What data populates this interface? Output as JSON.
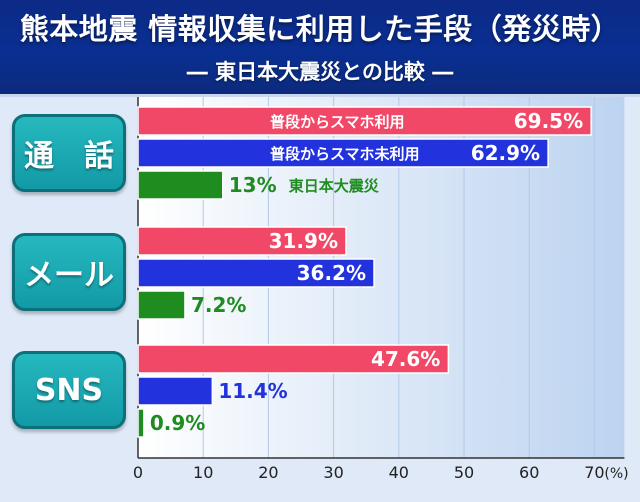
{
  "header": {
    "title": "熊本地震 情報収集に利用した手段（発災時）",
    "subtitle": "― 東日本大震災との比較 ―"
  },
  "colors": {
    "smartphone_users": "#f14867",
    "non_smartphone_users": "#2232dc",
    "great_east_japan": "#1f8c1f",
    "category_box": "#1aa6b0"
  },
  "chart_data": {
    "type": "bar",
    "orientation": "horizontal",
    "categories": [
      "通　話",
      "メール",
      "SNS"
    ],
    "series": [
      {
        "name": "普段からスマホ利用",
        "values": [
          69.5,
          31.9,
          47.6
        ]
      },
      {
        "name": "普段からスマホ未利用",
        "values": [
          62.9,
          36.2,
          11.4
        ]
      },
      {
        "name": "東日本大震災",
        "values": [
          13,
          7.2,
          0.9
        ]
      }
    ],
    "value_labels": [
      [
        "69.5%",
        "62.9%",
        "13%"
      ],
      [
        "31.9%",
        "36.2%",
        "7.2%"
      ],
      [
        "47.6%",
        "11.4%",
        "0.9%"
      ]
    ],
    "xlim": [
      0,
      70
    ],
    "xticks": [
      "0",
      "10",
      "20",
      "30",
      "40",
      "50",
      "60",
      "70"
    ],
    "x_unit": "(%)",
    "grid": true,
    "series_label_placement": "inside-bars-first-category"
  }
}
